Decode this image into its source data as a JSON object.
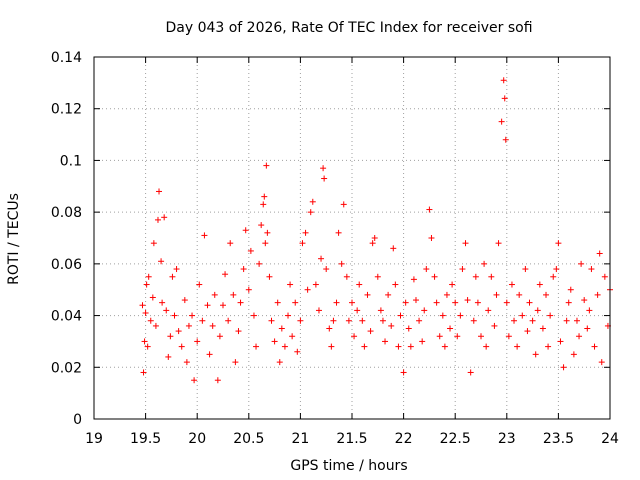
{
  "chart_data": {
    "type": "scatter",
    "title": "Day 043 of 2026, Rate Of TEC Index for receiver sofi",
    "xlabel": "GPS time / hours",
    "ylabel": "ROTI / TECUs",
    "xlim": [
      19,
      24
    ],
    "ylim": [
      0,
      0.14
    ],
    "xticks": [
      19,
      19.5,
      20,
      20.5,
      21,
      21.5,
      22,
      22.5,
      23,
      23.5,
      24
    ],
    "xtick_labels": [
      "19",
      "19.5",
      "20",
      "20.5",
      "21",
      "21.5",
      "22",
      "22.5",
      "23",
      "23.5",
      "24"
    ],
    "yticks": [
      0,
      0.02,
      0.04,
      0.06,
      0.08,
      0.1,
      0.12,
      0.14
    ],
    "ytick_labels": [
      "0",
      "0.02",
      "0.04",
      "0.06",
      "0.08",
      "0.1",
      "0.12",
      "0.14"
    ],
    "grid": true,
    "marker": "+",
    "marker_color": "#ff0000",
    "series": [
      {
        "name": "ROTI",
        "x": [
          19.47,
          19.48,
          19.49,
          19.5,
          19.51,
          19.52,
          19.53,
          19.55,
          19.57,
          19.58,
          19.6,
          19.62,
          19.63,
          19.65,
          19.66,
          19.68,
          19.7,
          19.72,
          19.74,
          19.76,
          19.78,
          19.8,
          19.82,
          19.85,
          19.88,
          19.9,
          19.92,
          19.95,
          19.97,
          20.0,
          20.02,
          20.05,
          20.07,
          20.1,
          20.12,
          20.15,
          20.17,
          20.2,
          20.22,
          20.25,
          20.27,
          20.3,
          20.32,
          20.35,
          20.37,
          20.4,
          20.42,
          20.45,
          20.47,
          20.5,
          20.52,
          20.55,
          20.57,
          20.6,
          20.62,
          20.64,
          20.65,
          20.66,
          20.67,
          20.68,
          20.7,
          20.72,
          20.75,
          20.78,
          20.8,
          20.82,
          20.85,
          20.88,
          20.9,
          20.92,
          20.95,
          20.97,
          21.0,
          21.02,
          21.05,
          21.07,
          21.1,
          21.12,
          21.15,
          21.18,
          21.2,
          21.22,
          21.23,
          21.25,
          21.28,
          21.3,
          21.32,
          21.35,
          21.37,
          21.4,
          21.42,
          21.45,
          21.47,
          21.5,
          21.52,
          21.55,
          21.57,
          21.6,
          21.62,
          21.65,
          21.68,
          21.7,
          21.72,
          21.75,
          21.78,
          21.8,
          21.82,
          21.85,
          21.88,
          21.9,
          21.92,
          21.95,
          21.97,
          22.0,
          22.02,
          22.05,
          22.07,
          22.1,
          22.12,
          22.15,
          22.18,
          22.2,
          22.22,
          22.25,
          22.27,
          22.3,
          22.32,
          22.35,
          22.38,
          22.4,
          22.42,
          22.45,
          22.47,
          22.5,
          22.52,
          22.55,
          22.57,
          22.6,
          22.62,
          22.65,
          22.68,
          22.7,
          22.72,
          22.75,
          22.78,
          22.8,
          22.82,
          22.85,
          22.88,
          22.9,
          22.92,
          22.95,
          22.97,
          22.98,
          22.99,
          23.0,
          23.02,
          23.05,
          23.07,
          23.1,
          23.12,
          23.15,
          23.18,
          23.2,
          23.22,
          23.25,
          23.28,
          23.3,
          23.32,
          23.35,
          23.38,
          23.4,
          23.42,
          23.45,
          23.48,
          23.5,
          23.52,
          23.55,
          23.58,
          23.6,
          23.62,
          23.65,
          23.68,
          23.7,
          23.72,
          23.75,
          23.78,
          23.8,
          23.82,
          23.85,
          23.88,
          23.9,
          23.92,
          23.95,
          23.98,
          24.0
        ],
        "y": [
          0.044,
          0.018,
          0.03,
          0.041,
          0.052,
          0.028,
          0.055,
          0.038,
          0.047,
          0.068,
          0.036,
          0.077,
          0.088,
          0.061,
          0.045,
          0.078,
          0.042,
          0.024,
          0.032,
          0.055,
          0.04,
          0.058,
          0.034,
          0.028,
          0.046,
          0.022,
          0.036,
          0.04,
          0.015,
          0.03,
          0.052,
          0.038,
          0.071,
          0.044,
          0.025,
          0.036,
          0.048,
          0.015,
          0.032,
          0.044,
          0.056,
          0.038,
          0.068,
          0.048,
          0.022,
          0.034,
          0.045,
          0.058,
          0.073,
          0.05,
          0.065,
          0.04,
          0.028,
          0.06,
          0.075,
          0.083,
          0.086,
          0.068,
          0.098,
          0.072,
          0.055,
          0.038,
          0.03,
          0.045,
          0.022,
          0.035,
          0.028,
          0.04,
          0.052,
          0.032,
          0.045,
          0.026,
          0.038,
          0.068,
          0.072,
          0.05,
          0.08,
          0.084,
          0.052,
          0.042,
          0.062,
          0.097,
          0.093,
          0.058,
          0.035,
          0.028,
          0.038,
          0.045,
          0.072,
          0.06,
          0.083,
          0.055,
          0.038,
          0.045,
          0.032,
          0.042,
          0.052,
          0.038,
          0.028,
          0.048,
          0.034,
          0.068,
          0.07,
          0.055,
          0.042,
          0.038,
          0.03,
          0.048,
          0.036,
          0.066,
          0.052,
          0.028,
          0.04,
          0.018,
          0.045,
          0.035,
          0.028,
          0.054,
          0.046,
          0.038,
          0.03,
          0.042,
          0.058,
          0.081,
          0.07,
          0.055,
          0.045,
          0.032,
          0.04,
          0.028,
          0.048,
          0.035,
          0.052,
          0.045,
          0.032,
          0.04,
          0.058,
          0.068,
          0.046,
          0.018,
          0.038,
          0.055,
          0.045,
          0.032,
          0.06,
          0.028,
          0.042,
          0.055,
          0.036,
          0.048,
          0.068,
          0.115,
          0.131,
          0.124,
          0.108,
          0.045,
          0.032,
          0.052,
          0.038,
          0.028,
          0.048,
          0.04,
          0.058,
          0.034,
          0.045,
          0.038,
          0.025,
          0.042,
          0.052,
          0.035,
          0.048,
          0.028,
          0.04,
          0.055,
          0.058,
          0.068,
          0.03,
          0.02,
          0.038,
          0.045,
          0.05,
          0.025,
          0.038,
          0.032,
          0.06,
          0.046,
          0.035,
          0.042,
          0.058,
          0.028,
          0.048,
          0.064,
          0.022,
          0.055,
          0.036,
          0.05
        ]
      }
    ]
  }
}
